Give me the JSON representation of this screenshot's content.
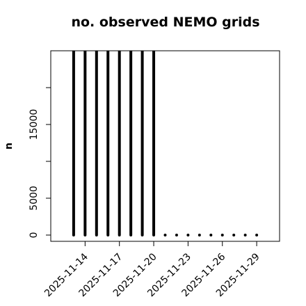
{
  "chart_data": {
    "type": "bar",
    "title": "no. observed NEMO grids",
    "y_label": "n",
    "x": [
      "2025-11-13",
      "2025-11-14",
      "2025-11-15",
      "2025-11-16",
      "2025-11-17",
      "2025-11-18",
      "2025-11-19",
      "2025-11-20",
      "2025-11-21",
      "2025-11-22",
      "2025-11-23",
      "2025-11-24",
      "2025-11-25",
      "2025-11-26",
      "2025-11-27",
      "2025-11-28",
      "2025-11-29"
    ],
    "values": [
      25000,
      25000,
      25000,
      25000,
      25000,
      25000,
      25000,
      25000,
      0,
      0,
      0,
      0,
      0,
      0,
      0,
      0,
      0
    ],
    "color": "#000000",
    "xlim": [
      "2025-11-11",
      "2025-12-01"
    ],
    "xticks": [
      "2025-11-14",
      "2025-11-17",
      "2025-11-20",
      "2025-11-23",
      "2025-11-26",
      "2025-11-29"
    ],
    "ylim": [
      -850,
      25000
    ],
    "yticks": [
      0,
      5000,
      15000
    ],
    "yminor": [
      10000,
      20000
    ]
  }
}
